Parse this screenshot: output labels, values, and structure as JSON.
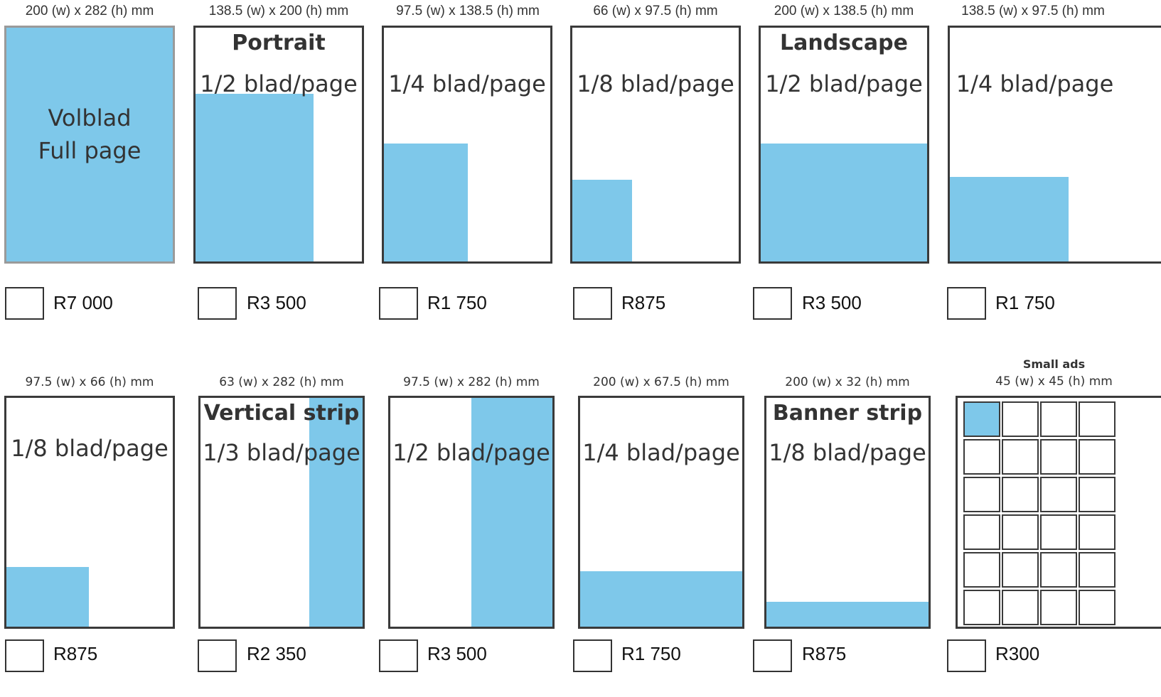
{
  "top_row": [
    {
      "dims": "200 (w) x 282 (h) mm",
      "title": "",
      "fraction_line1": "Volblad",
      "fraction_line2": "Full page",
      "price": "R7 000"
    },
    {
      "dims": "138.5 (w) x 200 (h) mm",
      "title": "Portrait",
      "fraction": "1/2 blad/page",
      "price": "R3 500"
    },
    {
      "dims": "97.5 (w) x 138.5 (h) mm",
      "title": "",
      "fraction": "1/4 blad/page",
      "price": "R1 750"
    },
    {
      "dims": "66 (w) x 97.5 (h) mm",
      "title": "",
      "fraction": "1/8 blad/page",
      "price": "R875"
    },
    {
      "dims": "200 (w) x 138.5 (h) mm",
      "title": "Landscape",
      "fraction": "1/2 blad/page",
      "price": "R3 500"
    },
    {
      "dims": "138.5 (w) x 97.5 (h) mm",
      "title": "",
      "fraction": "1/4 blad/page",
      "price": "R1 750"
    }
  ],
  "bottom_row": [
    {
      "dims": "97.5 (w) x 66 (h) mm",
      "title": "",
      "fraction": "1/8 blad/page",
      "price": "R875"
    },
    {
      "dims": "63 (w) x 282 (h) mm",
      "title": "Vertical strip",
      "fraction": "1/3 blad/page",
      "price": "R2 350"
    },
    {
      "dims": "97.5 (w) x 282 (h) mm",
      "title": "",
      "fraction": "1/2 blad/page",
      "price": "R3 500"
    },
    {
      "dims": "200 (w) x 67.5 (h) mm",
      "title": "",
      "fraction": "1/4 blad/page",
      "price": "R1 750"
    },
    {
      "dims": "200 (w) x 32 (h) mm",
      "title": "Banner strip",
      "fraction": "1/8 blad/page",
      "price": "R875"
    },
    {
      "dims": "45 (w) x 45 (h) mm",
      "title": "Small ads",
      "price": "R300"
    }
  ],
  "colors": {
    "fill": "#7ec8ea",
    "border": "#3a3a3a"
  }
}
